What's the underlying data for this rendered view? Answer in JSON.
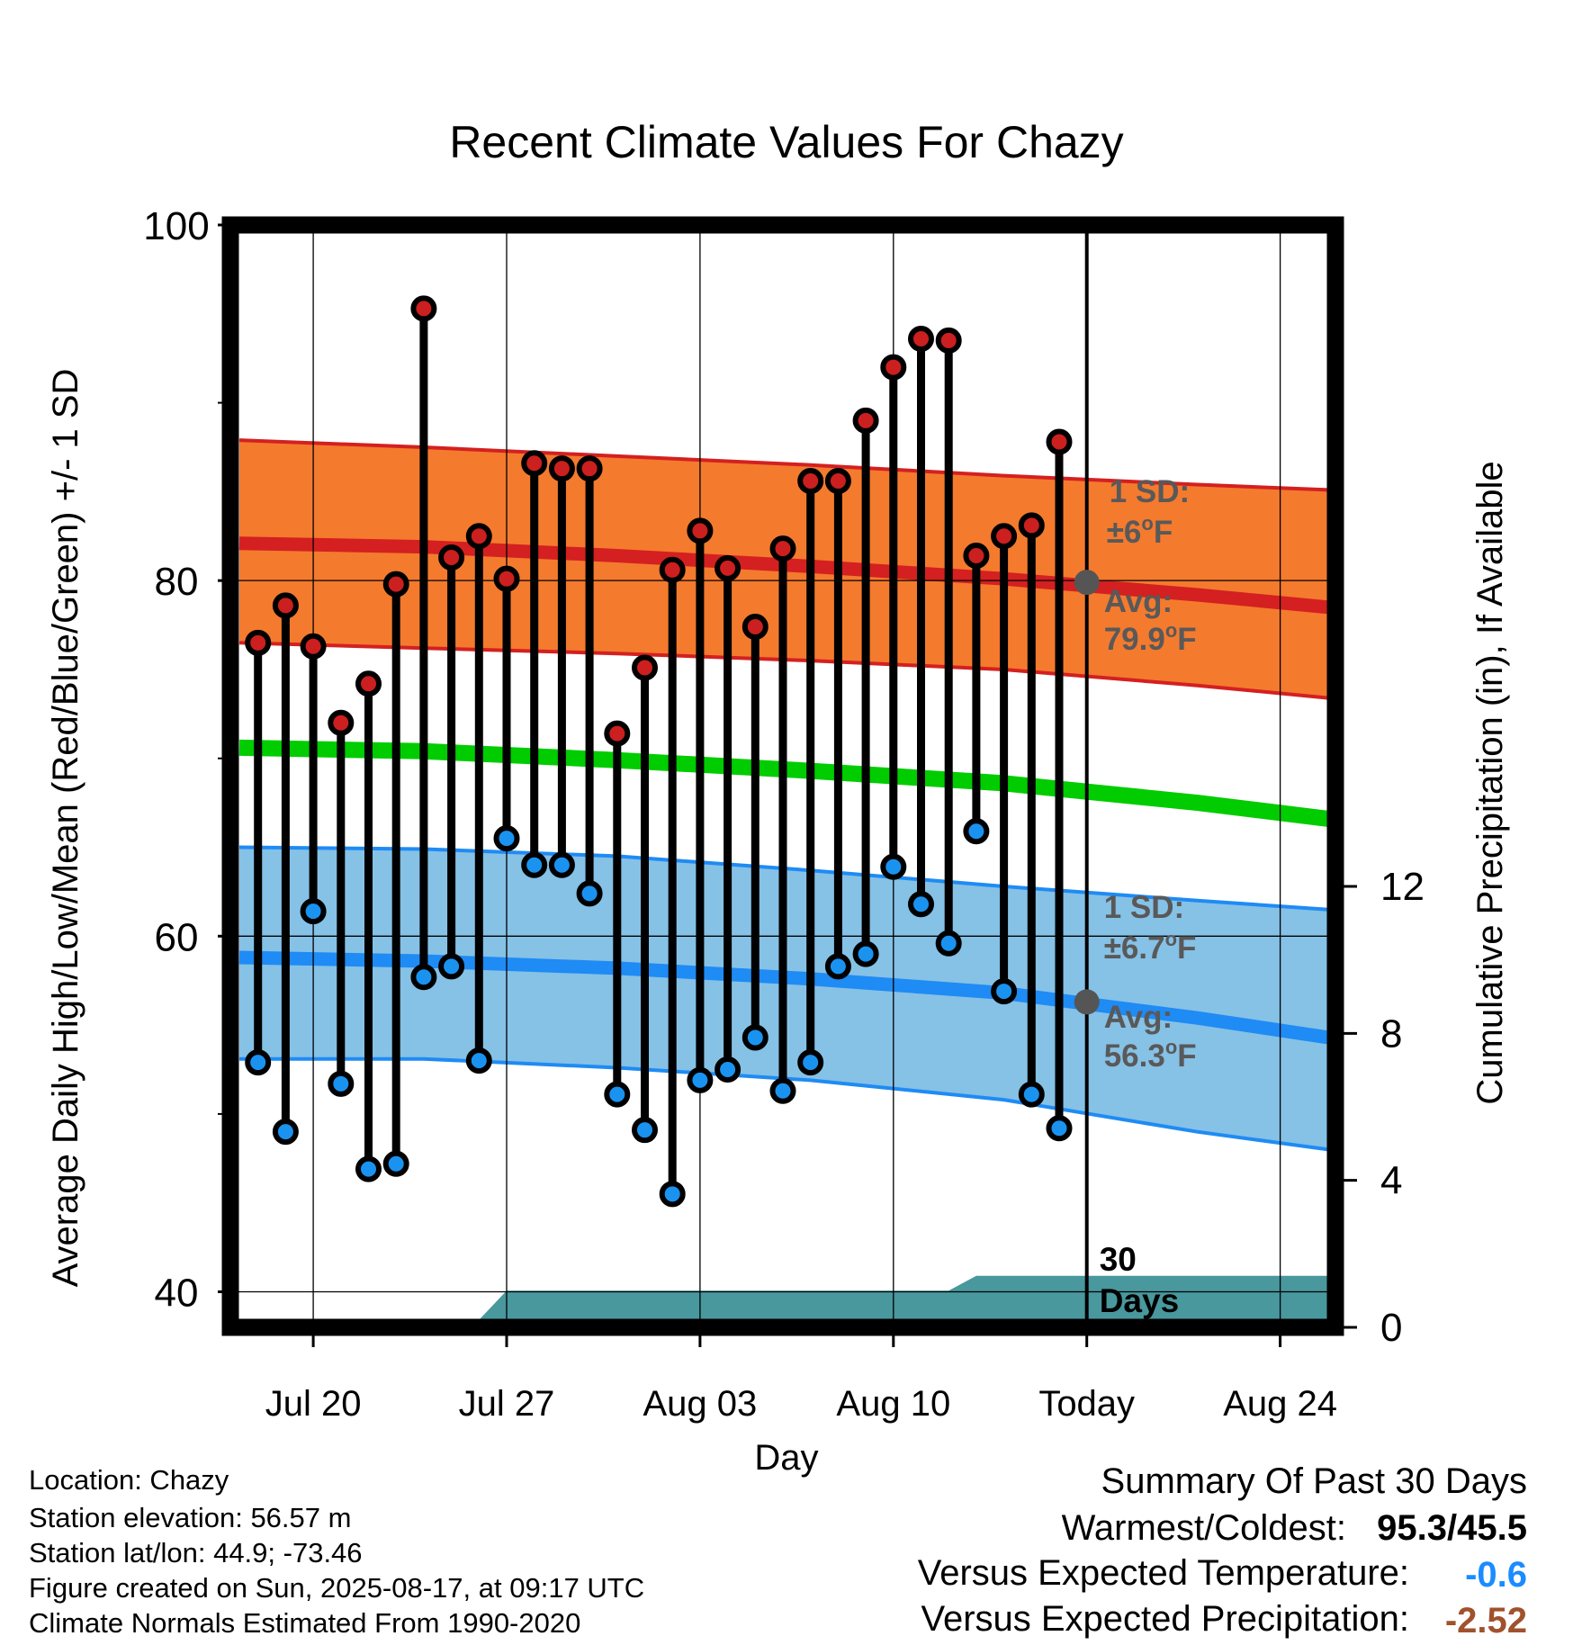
{
  "chart_data": {
    "type": "line",
    "title": "Recent Climate Values For Chazy",
    "xlabel": "Day",
    "ylabel": "Average Daily High/Low/Mean (Red/Blue/Green) +/- 1 SD",
    "y2label": "Cumulative Precipitation (in), If Available",
    "xlim": [
      "2025-07-17",
      "2025-08-26"
    ],
    "ylim": [
      38,
      100
    ],
    "y2lim": [
      0,
      30
    ],
    "x_ticks": [
      {
        "date": "2025-07-20",
        "label": "Jul 20"
      },
      {
        "date": "2025-07-27",
        "label": "Jul 27"
      },
      {
        "date": "2025-08-03",
        "label": "Aug 03"
      },
      {
        "date": "2025-08-10",
        "label": "Aug 10"
      },
      {
        "date": "2025-08-17",
        "label": "Today"
      },
      {
        "date": "2025-08-24",
        "label": "Aug 24"
      }
    ],
    "y_ticks": [
      {
        "value": 40,
        "label": "40"
      },
      {
        "value": 60,
        "label": "60"
      },
      {
        "value": 80,
        "label": "80"
      },
      {
        "value": 100,
        "label": "100"
      }
    ],
    "y_minor_ticks": [
      50,
      70,
      90
    ],
    "y2_ticks": [
      {
        "value": 0,
        "label": "0"
      },
      {
        "value": 4,
        "label": "4"
      },
      {
        "value": 8,
        "label": "8"
      },
      {
        "value": 12,
        "label": "12"
      }
    ],
    "grid": true,
    "colors": {
      "high_band": "#f47a2e",
      "high_line": "#d42020",
      "low_band": "#86c1e6",
      "low_line": "#1f8bf4",
      "mean_line": "#00cc00",
      "precip": "#48989e",
      "high_marker": "#cc1f1f",
      "low_marker": "#1a93f0",
      "annotation_text": "#595959",
      "today_marker": "#555555"
    },
    "normals": {
      "dates": [
        "2025-07-17",
        "2025-07-24",
        "2025-07-31",
        "2025-08-07",
        "2025-08-14",
        "2025-08-21",
        "2025-08-26"
      ],
      "high_avg": [
        82.1,
        81.9,
        81.4,
        80.8,
        80.1,
        79.2,
        78.5
      ],
      "high_upper": [
        87.9,
        87.5,
        87.0,
        86.5,
        85.9,
        85.4,
        85.1
      ],
      "high_lower": [
        76.5,
        76.2,
        75.9,
        75.5,
        75.0,
        74.1,
        73.4
      ],
      "mean": [
        70.6,
        70.4,
        69.9,
        69.3,
        68.6,
        67.5,
        66.6
      ],
      "low_avg": [
        58.8,
        58.6,
        58.2,
        57.6,
        56.8,
        55.4,
        54.3
      ],
      "low_upper": [
        65.0,
        64.9,
        64.5,
        63.7,
        62.8,
        62.0,
        61.5
      ],
      "low_lower": [
        53.1,
        53.1,
        52.6,
        51.9,
        50.8,
        49.0,
        48.0
      ]
    },
    "series": [
      {
        "name": "High",
        "dates": [
          "2025-07-18",
          "2025-07-19",
          "2025-07-20",
          "2025-07-21",
          "2025-07-22",
          "2025-07-23",
          "2025-07-24",
          "2025-07-25",
          "2025-07-26",
          "2025-07-27",
          "2025-07-28",
          "2025-07-29",
          "2025-07-30",
          "2025-07-31",
          "2025-08-01",
          "2025-08-02",
          "2025-08-03",
          "2025-08-04",
          "2025-08-05",
          "2025-08-06",
          "2025-08-07",
          "2025-08-08",
          "2025-08-09",
          "2025-08-10",
          "2025-08-11",
          "2025-08-12",
          "2025-08-13",
          "2025-08-14",
          "2025-08-15",
          "2025-08-16"
        ],
        "values": [
          76.5,
          78.6,
          76.3,
          72.0,
          74.2,
          79.8,
          95.3,
          81.3,
          82.5,
          80.1,
          86.6,
          86.3,
          86.3,
          71.4,
          75.1,
          80.6,
          82.8,
          80.7,
          77.4,
          81.8,
          85.6,
          85.6,
          89.0,
          92.0,
          93.6,
          93.5,
          81.4,
          82.5,
          83.1,
          87.8
        ]
      },
      {
        "name": "Low",
        "dates": [
          "2025-07-18",
          "2025-07-19",
          "2025-07-20",
          "2025-07-21",
          "2025-07-22",
          "2025-07-23",
          "2025-07-24",
          "2025-07-25",
          "2025-07-26",
          "2025-07-27",
          "2025-07-28",
          "2025-07-29",
          "2025-07-30",
          "2025-07-31",
          "2025-08-01",
          "2025-08-02",
          "2025-08-03",
          "2025-08-04",
          "2025-08-05",
          "2025-08-06",
          "2025-08-07",
          "2025-08-08",
          "2025-08-09",
          "2025-08-10",
          "2025-08-11",
          "2025-08-12",
          "2025-08-13",
          "2025-08-14",
          "2025-08-15",
          "2025-08-16"
        ],
        "values": [
          52.9,
          49.0,
          61.4,
          51.7,
          46.9,
          47.2,
          57.7,
          58.3,
          53.0,
          65.5,
          64.0,
          64.0,
          62.4,
          51.1,
          49.1,
          45.5,
          51.9,
          52.5,
          54.3,
          51.3,
          52.9,
          58.3,
          59.0,
          63.9,
          61.8,
          59.6,
          65.9,
          56.9,
          51.1,
          49.2
        ]
      },
      {
        "name": "Cumulative Precipitation",
        "dates": [
          "2025-07-21",
          "2025-07-22",
          "2025-07-23",
          "2025-07-24",
          "2025-07-25",
          "2025-07-26",
          "2025-07-27",
          "2025-07-28",
          "2025-08-12",
          "2025-08-13",
          "2025-08-16",
          "2025-08-26"
        ],
        "values": [
          0,
          0,
          0,
          0,
          0.2,
          0.2,
          1.0,
          1.0,
          1.0,
          1.4,
          1.4,
          1.4
        ]
      }
    ],
    "annotations": {
      "high_sd_label": "1 SD:",
      "high_sd_value": "±6",
      "high_avg_label": "Avg:",
      "high_avg_value": "79.9",
      "low_sd_label": "1 SD:",
      "low_sd_value": "±6.7",
      "low_avg_label": "Avg:",
      "low_avg_value": "56.3",
      "degree_unit": "o",
      "temp_unit": "F",
      "precip_label_line1": "30",
      "precip_label_line2": "Days",
      "today_high_avg": 79.9,
      "today_low_avg": 56.3
    }
  },
  "footer": {
    "location": "Location: Chazy",
    "elevation": "Station elevation: 56.57 m",
    "latlon": "Station lat/lon: 44.9; -73.46",
    "created": "Figure created on Sun, 2025-08-17, at 09:17 UTC",
    "normals": "Climate Normals Estimated From 1990-2020"
  },
  "summary": {
    "title": "Summary Of Past 30 Days",
    "warmest_coldest_label": "Warmest/Coldest:",
    "warmest_coldest_value": "95.3/45.5",
    "temp_label": "Versus Expected Temperature:",
    "temp_value": "-0.6",
    "temp_color": "#1a8cff",
    "precip_label": "Versus Expected Precipitation:",
    "precip_value": "-2.52",
    "precip_color": "#a0522d"
  }
}
